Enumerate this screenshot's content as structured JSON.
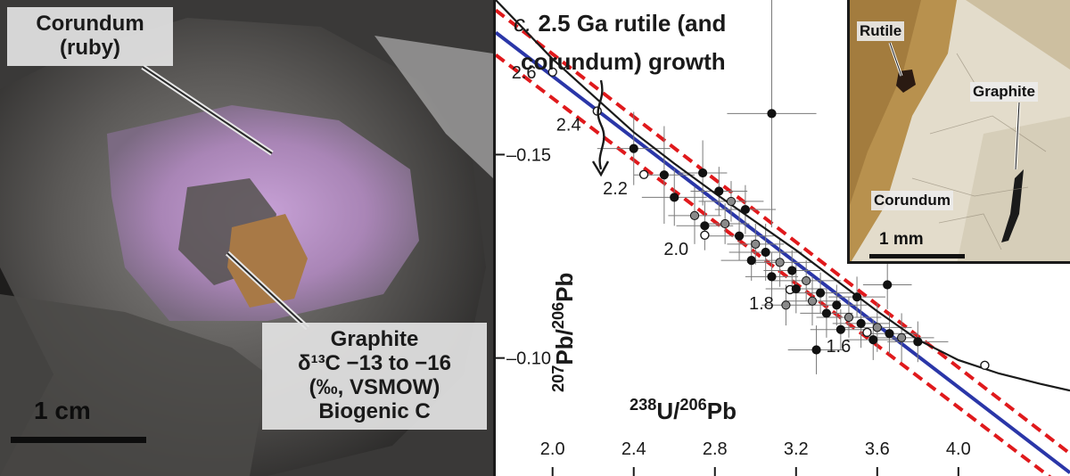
{
  "photo": {
    "corundum_label": [
      "Corundum",
      "(ruby)"
    ],
    "graphite_label": [
      "Graphite",
      "δ¹³C −13 to −16",
      "(‰, VSMOW)",
      "Biogenic C"
    ],
    "scale_label": "1 cm"
  },
  "inset": {
    "rutile_label": "Rutile",
    "graphite_label": "Graphite",
    "corundum_label": "Corundum",
    "scale_label": "1 mm"
  },
  "chart_data": {
    "type": "scatter",
    "annotation": [
      "c. 2.5 Ga rutile (and",
      "corundum) growth"
    ],
    "xlabel": "238U/206Pb",
    "ylabel": "207Pb/206Pb",
    "xlim": [
      1.72,
      4.55
    ],
    "ylim": [
      0.071,
      0.188
    ],
    "x_ticks": [
      2.0,
      2.4,
      2.8,
      3.2,
      3.6,
      4.0
    ],
    "y_ticks": [
      0.1,
      0.15
    ],
    "concordia": {
      "points": [
        [
          1.72,
          0.188
        ],
        [
          2.0,
          0.1735
        ],
        [
          2.2,
          0.1645
        ],
        [
          2.4,
          0.1555
        ],
        [
          2.6,
          0.1478
        ],
        [
          2.8,
          0.1405
        ],
        [
          3.0,
          0.1335
        ],
        [
          3.2,
          0.1265
        ],
        [
          3.4,
          0.119
        ],
        [
          3.6,
          0.1115
        ],
        [
          3.8,
          0.1045
        ],
        [
          4.0,
          0.0995
        ],
        [
          4.2,
          0.0962
        ],
        [
          4.4,
          0.0937
        ],
        [
          4.55,
          0.092
        ]
      ],
      "age_labels": [
        {
          "age": "2.6",
          "x": 2.0,
          "y": 0.1735
        },
        {
          "age": "2.4",
          "x": 2.22,
          "y": 0.1607
        },
        {
          "age": "2.2",
          "x": 2.45,
          "y": 0.1451
        },
        {
          "age": "2.0",
          "x": 2.75,
          "y": 0.1302
        },
        {
          "age": "1.8",
          "x": 3.17,
          "y": 0.1168
        },
        {
          "age": "1.6",
          "x": 3.55,
          "y": 0.1063
        }
      ],
      "open_markers": [
        [
          2.0,
          0.1703
        ],
        [
          2.22,
          0.1607
        ],
        [
          2.45,
          0.1451
        ],
        [
          2.75,
          0.1302
        ],
        [
          3.17,
          0.1168
        ],
        [
          3.55,
          0.1063
        ],
        [
          4.13,
          0.0982
        ]
      ]
    },
    "regression_line": [
      [
        1.72,
        0.18
      ],
      [
        4.55,
        0.0718
      ]
    ],
    "confidence_band": [
      [
        [
          1.72,
          0.1855
        ],
        [
          4.55,
          0.0765
        ]
      ],
      [
        [
          1.72,
          0.1745
        ],
        [
          4.55,
          0.067
        ]
      ]
    ],
    "points": [
      {
        "x": 3.08,
        "y": 0.1601,
        "ex": 0.22,
        "ey": 0.028,
        "filled": true
      },
      {
        "x": 2.4,
        "y": 0.1515,
        "ex": 0.18,
        "ey": 0.009,
        "filled": true
      },
      {
        "x": 2.55,
        "y": 0.145,
        "ex": 0.15,
        "ey": 0.012,
        "filled": true
      },
      {
        "x": 2.74,
        "y": 0.1455,
        "ex": 0.12,
        "ey": 0.008,
        "filled": true
      },
      {
        "x": 2.82,
        "y": 0.141,
        "ex": 0.14,
        "ey": 0.006,
        "filled": true
      },
      {
        "x": 2.88,
        "y": 0.1385,
        "ex": 0.16,
        "ey": 0.005,
        "filled": false
      },
      {
        "x": 2.95,
        "y": 0.1365,
        "ex": 0.15,
        "ey": 0.006,
        "filled": true
      },
      {
        "x": 2.7,
        "y": 0.135,
        "ex": 0.13,
        "ey": 0.007,
        "filled": false
      },
      {
        "x": 2.75,
        "y": 0.1325,
        "ex": 0.14,
        "ey": 0.006,
        "filled": true
      },
      {
        "x": 2.85,
        "y": 0.133,
        "ex": 0.12,
        "ey": 0.005,
        "filled": false
      },
      {
        "x": 2.92,
        "y": 0.13,
        "ex": 0.17,
        "ey": 0.006,
        "filled": true
      },
      {
        "x": 3.0,
        "y": 0.128,
        "ex": 0.14,
        "ey": 0.005,
        "filled": false
      },
      {
        "x": 3.05,
        "y": 0.126,
        "ex": 0.18,
        "ey": 0.007,
        "filled": true
      },
      {
        "x": 2.98,
        "y": 0.124,
        "ex": 0.15,
        "ey": 0.005,
        "filled": true
      },
      {
        "x": 3.12,
        "y": 0.1235,
        "ex": 0.16,
        "ey": 0.006,
        "filled": false
      },
      {
        "x": 3.18,
        "y": 0.1215,
        "ex": 0.14,
        "ey": 0.005,
        "filled": true
      },
      {
        "x": 3.08,
        "y": 0.12,
        "ex": 0.13,
        "ey": 0.006,
        "filled": true
      },
      {
        "x": 3.25,
        "y": 0.119,
        "ex": 0.17,
        "ey": 0.005,
        "filled": false
      },
      {
        "x": 3.2,
        "y": 0.117,
        "ex": 0.15,
        "ey": 0.006,
        "filled": true
      },
      {
        "x": 3.32,
        "y": 0.116,
        "ex": 0.16,
        "ey": 0.005,
        "filled": true
      },
      {
        "x": 3.28,
        "y": 0.114,
        "ex": 0.14,
        "ey": 0.006,
        "filled": false
      },
      {
        "x": 3.4,
        "y": 0.113,
        "ex": 0.15,
        "ey": 0.005,
        "filled": true
      },
      {
        "x": 3.35,
        "y": 0.111,
        "ex": 0.13,
        "ey": 0.006,
        "filled": true
      },
      {
        "x": 3.46,
        "y": 0.11,
        "ex": 0.16,
        "ey": 0.005,
        "filled": false
      },
      {
        "x": 3.52,
        "y": 0.1085,
        "ex": 0.14,
        "ey": 0.006,
        "filled": true
      },
      {
        "x": 3.42,
        "y": 0.107,
        "ex": 0.15,
        "ey": 0.005,
        "filled": true
      },
      {
        "x": 3.6,
        "y": 0.1075,
        "ex": 0.17,
        "ey": 0.006,
        "filled": false
      },
      {
        "x": 3.66,
        "y": 0.106,
        "ex": 0.14,
        "ey": 0.005,
        "filled": true
      },
      {
        "x": 3.58,
        "y": 0.1045,
        "ex": 0.13,
        "ey": 0.005,
        "filled": true
      },
      {
        "x": 3.72,
        "y": 0.105,
        "ex": 0.16,
        "ey": 0.006,
        "filled": false
      },
      {
        "x": 3.8,
        "y": 0.104,
        "ex": 0.15,
        "ey": 0.005,
        "filled": true
      },
      {
        "x": 3.65,
        "y": 0.118,
        "ex": 0.12,
        "ey": 0.006,
        "filled": true
      },
      {
        "x": 3.3,
        "y": 0.102,
        "ex": 0.14,
        "ey": 0.006,
        "filled": true
      },
      {
        "x": 3.15,
        "y": 0.113,
        "ex": 0.12,
        "ey": 0.005,
        "filled": false
      },
      {
        "x": 2.6,
        "y": 0.1395,
        "ex": 0.16,
        "ey": 0.007,
        "filled": true
      },
      {
        "x": 3.5,
        "y": 0.115,
        "ex": 0.14,
        "ey": 0.005,
        "filled": true
      }
    ]
  }
}
